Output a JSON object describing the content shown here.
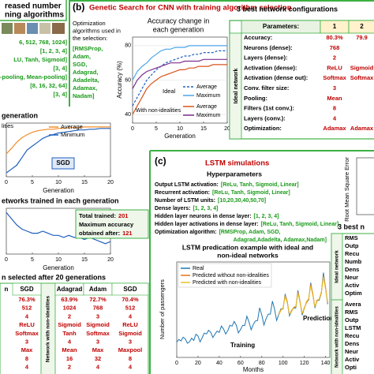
{
  "chart_data": [
    {
      "type": "line",
      "title": "generation",
      "annotation": "lities",
      "box_label": "SGD",
      "x_label": "Generation",
      "x": [
        0,
        1,
        2,
        3,
        4,
        5,
        6,
        7,
        8,
        9,
        10,
        11,
        12,
        13,
        14,
        15,
        16,
        17,
        18,
        19,
        20
      ],
      "xlim": [
        0,
        20
      ],
      "xticks": [
        0,
        5,
        10,
        15,
        20
      ],
      "ylim": [
        15,
        85
      ],
      "series": [
        {
          "name": "Average",
          "color": "#f28c28",
          "values": [
            45,
            52,
            60,
            66,
            70,
            73,
            75,
            76,
            77,
            77,
            78,
            78,
            79,
            79,
            79,
            80,
            80,
            80,
            80,
            80,
            80
          ]
        },
        {
          "name": "Minimum",
          "color": "#1f5fbf",
          "values": [
            20,
            25,
            30,
            40,
            50,
            55,
            60,
            65,
            68,
            70,
            72,
            73,
            74,
            75,
            76,
            76,
            77,
            77,
            78,
            78,
            78
          ]
        }
      ]
    },
    {
      "type": "line",
      "title": "etworks trained in each generation",
      "x_label": "Generation",
      "x": [
        0,
        1,
        2,
        3,
        4,
        5,
        6,
        7,
        8,
        9,
        10,
        11,
        12,
        13,
        14,
        15,
        16,
        17,
        18,
        19,
        20
      ],
      "xlim": [
        0,
        20
      ],
      "xticks": [
        0,
        5,
        10,
        15,
        20
      ],
      "ylim": [
        0,
        22
      ],
      "series": [
        {
          "color": "#1f5fbf",
          "values": [
            20,
            17,
            14,
            12,
            11,
            10,
            10,
            11,
            10,
            9,
            9,
            8,
            9,
            8,
            8,
            7,
            8,
            7,
            6,
            5,
            6
          ]
        }
      ],
      "summary": {
        "total_label": "Total trained:",
        "total": 201,
        "max_label_lines": [
          "Maximum accuracy",
          "obtained after:"
        ],
        "max_after": 121
      }
    },
    {
      "type": "line",
      "title": [
        "Accuracy change in",
        "each generation"
      ],
      "x_label": "Generation",
      "y_label": "Accuracy (%)",
      "x": [
        0,
        1,
        2,
        3,
        4,
        5,
        6,
        7,
        8,
        9,
        10,
        11,
        12,
        13,
        14,
        15,
        16,
        17,
        18,
        19,
        20
      ],
      "xlim": [
        0,
        20
      ],
      "xticks": [
        0,
        5,
        10,
        15,
        20
      ],
      "ylim": [
        35,
        85
      ],
      "yticks": [
        40,
        60,
        80
      ],
      "series": [
        {
          "group": "Ideal",
          "name": "Average",
          "color": "#1f5fbf",
          "style": "dashed",
          "values": [
            45,
            50,
            55,
            60,
            63,
            66,
            68,
            70,
            71,
            72,
            73,
            74,
            74,
            75,
            75,
            76,
            76,
            76,
            77,
            77,
            77
          ]
        },
        {
          "group": "Ideal",
          "name": "Maximum",
          "color": "#4da6e8",
          "style": "solid",
          "values": [
            60,
            65,
            68,
            70,
            73,
            75,
            77,
            78,
            78,
            79,
            79,
            79,
            80,
            80,
            80,
            80,
            80,
            80,
            80,
            80,
            80
          ]
        },
        {
          "group": "With non-idealities",
          "name": "Average",
          "color": "#d9541e",
          "style": "solid",
          "values": [
            40,
            45,
            50,
            55,
            58,
            60,
            62,
            63,
            64,
            65,
            66,
            66,
            67,
            67,
            68,
            68,
            68,
            69,
            69,
            69,
            69
          ]
        },
        {
          "group": "With non-idealities",
          "name": "Maximum",
          "color": "#7e2f8e",
          "style": "solid",
          "values": [
            55,
            60,
            63,
            65,
            66,
            67,
            68,
            69,
            70,
            70,
            70,
            71,
            71,
            71,
            71,
            72,
            72,
            72,
            72,
            72,
            72
          ]
        }
      ]
    },
    {
      "type": "line",
      "title": [
        "LSTM predication example with ideal and",
        "non-ideal networks"
      ],
      "x_label": "Months",
      "y_label": "Number of passengers",
      "annotations": [
        "Training",
        "Prediction"
      ],
      "xlim": [
        0,
        144
      ],
      "xticks": [
        0,
        20,
        40,
        60,
        80,
        100,
        120,
        140
      ],
      "ylim": [
        0,
        700
      ],
      "series": [
        {
          "name": "Real",
          "color": "#1f77b4",
          "x": [
            0,
            2,
            4,
            6,
            8,
            10,
            12,
            14,
            16,
            18,
            20,
            22,
            24,
            26,
            28,
            30,
            32,
            34,
            36,
            38,
            40,
            42,
            44,
            46,
            48,
            50,
            52,
            54,
            56,
            58,
            60,
            62,
            64,
            66,
            68,
            70,
            72,
            74,
            76,
            78,
            80,
            82,
            84,
            86,
            88,
            90,
            92,
            94,
            96,
            98,
            100,
            102,
            104,
            106,
            108,
            110,
            112,
            114,
            116,
            118,
            120,
            122,
            124,
            126,
            128,
            130,
            132,
            134,
            136,
            138,
            140,
            142
          ],
          "values": [
            112,
            132,
            121,
            148,
            136,
            104,
            115,
            141,
            125,
            170,
            158,
            114,
            145,
            178,
            172,
            199,
            184,
            146,
            171,
            193,
            183,
            230,
            209,
            172,
            196,
            236,
            229,
            264,
            237,
            180,
            204,
            235,
            234,
            302,
            259,
            203,
            242,
            267,
            270,
            364,
            312,
            237,
            284,
            317,
            318,
            413,
            355,
            271,
            315,
            356,
            355,
            465,
            404,
            305,
            340,
            362,
            363,
            491,
            404,
            310,
            360,
            406,
            420,
            548,
            463,
            362,
            417,
            419,
            472,
            622,
            508,
            390
          ]
        },
        {
          "name": "Predicted without non-idealities",
          "color": "#e8731a",
          "x": [
            96,
            98,
            100,
            102,
            104,
            106,
            108,
            110,
            112,
            114,
            116,
            118,
            120,
            122,
            124,
            126,
            128,
            130,
            132,
            134,
            136,
            138,
            140,
            142
          ],
          "values": [
            320,
            350,
            360,
            455,
            410,
            315,
            345,
            365,
            370,
            480,
            410,
            320,
            365,
            400,
            425,
            535,
            470,
            370,
            420,
            425,
            470,
            600,
            515,
            400
          ]
        },
        {
          "name": "Predicted with non-idealities",
          "color": "#e8c020",
          "x": [
            96,
            98,
            100,
            102,
            104,
            106,
            108,
            110,
            112,
            114,
            116,
            118,
            120,
            122,
            124,
            126,
            128,
            130,
            132,
            134,
            136,
            138,
            140,
            142
          ],
          "values": [
            310,
            345,
            365,
            445,
            400,
            320,
            335,
            370,
            375,
            470,
            400,
            325,
            355,
            410,
            430,
            525,
            455,
            375,
            410,
            430,
            480,
            590,
            500,
            405
          ]
        }
      ]
    },
    {
      "type": "line",
      "y_label": "Root Mean Square Error",
      "series": []
    }
  ],
  "left_panel": {
    "heading": [
      "reased number",
      "ning algorithms"
    ],
    "params": [
      "6, 512, 768, 1024]",
      "[1, 2, 3, 4]",
      "LU, Tanh, Sigmoid]",
      "[3, 4]",
      "x-pooling, Mean-pooling]",
      "[8, 16, 32, 64]",
      "[3, 4]"
    ],
    "table": {
      "title": "n selected after 20 generations",
      "first_header": "n",
      "group_label": "Network with non-idealities",
      "headers": [
        "SGD",
        "Adagrad",
        "Adam",
        "SGD"
      ],
      "rows": [
        [
          "76.3%",
          "63.9%",
          "72.7%",
          "70.4%"
        ],
        [
          "512",
          "1024",
          "768",
          "512"
        ],
        [
          "4",
          "2",
          "3",
          "4"
        ],
        [
          "ReLU",
          "Sigmoid",
          "Sigmoid",
          "ReLU"
        ],
        [
          "Softmax",
          "Tanh",
          "Softmax",
          "Sigmoid"
        ],
        [
          "3",
          "4",
          "3",
          "3"
        ],
        [
          "Max",
          "Mean",
          "Max",
          "Maxpool"
        ],
        [
          "8",
          "16",
          "32",
          "8"
        ],
        [
          "4",
          "2",
          "4",
          "4"
        ]
      ]
    }
  },
  "panel_b": {
    "label": "(b)",
    "title": "Genetic Search for CNN with training algorithm selection",
    "algo_intro": [
      "Optimization",
      "algorithms used in",
      "the selection:"
    ],
    "algos": [
      "[RMSProp,",
      "Adam,",
      "SGD,",
      "Adagrad,",
      "Adadelta,",
      "Adamax,",
      "Nadam]"
    ],
    "table": {
      "title": "3 best network configurations",
      "headers": [
        "Parameters:",
        "1",
        "2"
      ],
      "group_label": "Ideal network",
      "rows": [
        [
          "Accuracy:",
          "80.3%",
          "79.9"
        ],
        [
          "Neurons (dense):",
          "768"
        ],
        [
          "Layers (dense):",
          "2"
        ],
        [
          "Activation (dense):",
          "ReLU",
          "Sigmoid"
        ],
        [
          "Activation (dense out):",
          "Softmax",
          "Softmax"
        ],
        [
          "Conv. filter size:",
          "3"
        ],
        [
          "Pooling:",
          "Mean"
        ],
        [
          "Filters (1st conv.):",
          "8"
        ],
        [
          "Layers (conv.):",
          "4"
        ],
        [
          "Optimization:",
          "Adamax",
          "Adamax"
        ]
      ]
    }
  },
  "panel_c": {
    "label": "(c)",
    "title": "LSTM simulations",
    "subtitle": "Hyperparameters",
    "params": [
      [
        "Output LSTM activation:",
        "[ReLu, Tanh, Sigmoid, Linear]"
      ],
      [
        "Recurrent activation:",
        "[ReLu, Tanh, Sigmoid, Linear]"
      ],
      [
        "Number of LSTM units:",
        "[10,20,30,40,50,70]"
      ],
      [
        "Dense layers:",
        "[1, 2, 3, 4]"
      ],
      [
        "Hidden layer neurons in dense layer:",
        "[1, 2, 3, 4]"
      ],
      [
        "Hidden layer activations in dense layer:",
        "[ReLu, Tanh, Sigmoid, Linear]"
      ],
      [
        "Optimization algorithm:",
        "[RMSProp, Adam, SGD,"
      ]
    ],
    "optimization_cont": "Adagrad,Adadelta, Adamax,Nadam]",
    "table": {
      "title": "3 best n",
      "ideal_label": "Ideal network",
      "ideal_rows": [
        "RMS",
        "Outp",
        "Recu",
        "Numb",
        "Dens",
        "Neur",
        "Activ",
        "Optim"
      ],
      "nonideal_label": "Network with non-idealities",
      "nonideal_rows": [
        "Avera",
        "RMS",
        "Outp",
        "LSTM",
        "Recu",
        "Dens",
        "Neur",
        "Activ",
        "Opti"
      ]
    }
  }
}
